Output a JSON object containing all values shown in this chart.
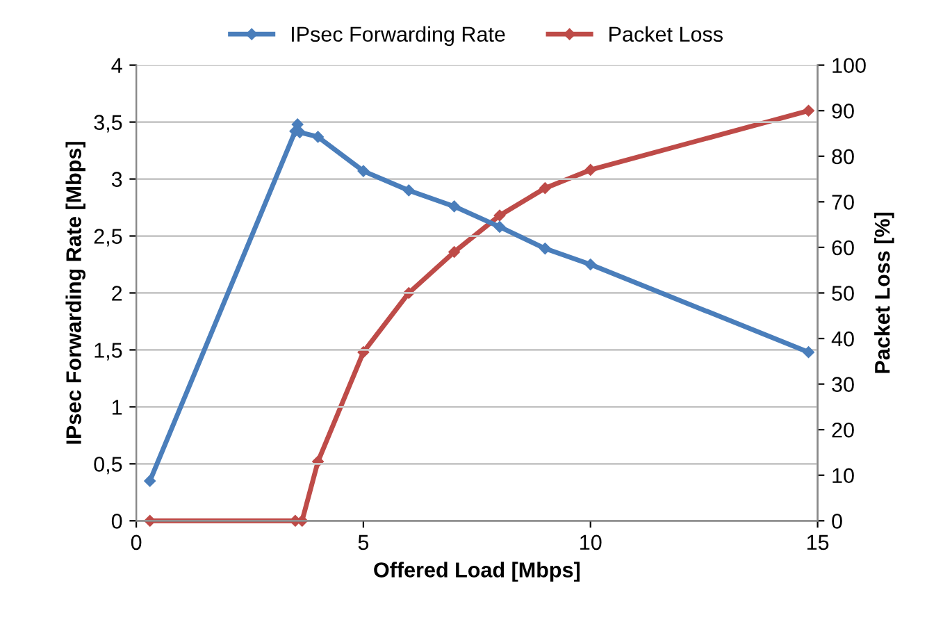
{
  "chart_data": {
    "type": "line",
    "xlabel": "Offered Load [Mbps]",
    "ylabel": "IPsec Forwarding Rate [Mbps]",
    "y2label": "Packet Loss [%]",
    "series": [
      {
        "name": "IPsec Forwarding Rate",
        "color": "#4a7ebb",
        "x": [
          0.3,
          3.5,
          3.55,
          3.6,
          4,
          5,
          6,
          7,
          8,
          9,
          10,
          14.8
        ],
        "values": [
          0.35,
          3.42,
          3.48,
          3.41,
          3.37,
          3.07,
          2.9,
          2.76,
          2.58,
          2.39,
          2.25,
          1.48
        ]
      },
      {
        "name": "Packet Loss",
        "color": "#be4b48",
        "axis": "y2",
        "x": [
          0.3,
          3.5,
          3.65,
          4,
          5,
          6,
          7,
          8,
          9,
          10,
          14.8
        ],
        "values": [
          0,
          0,
          0,
          13,
          37,
          50,
          59,
          67,
          73,
          77,
          90
        ]
      }
    ],
    "xlim": [
      0,
      15
    ],
    "xticks": [
      0,
      5,
      10,
      15
    ],
    "ylim": [
      0,
      4
    ],
    "yticks": [
      0,
      {
        "value": 0.5,
        "label": "0,5"
      },
      1,
      {
        "value": 1.5,
        "label": "1,5"
      },
      2,
      {
        "value": 2.5,
        "label": "2,5"
      },
      3,
      {
        "value": 3.5,
        "label": "3,5"
      },
      4
    ],
    "y2lim": [
      0,
      100
    ],
    "y2ticks": [
      0,
      10,
      20,
      30,
      40,
      50,
      60,
      70,
      80,
      90,
      100
    ],
    "grid": "y",
    "legend": "top",
    "marker": "diamond",
    "line_style": "solid"
  }
}
